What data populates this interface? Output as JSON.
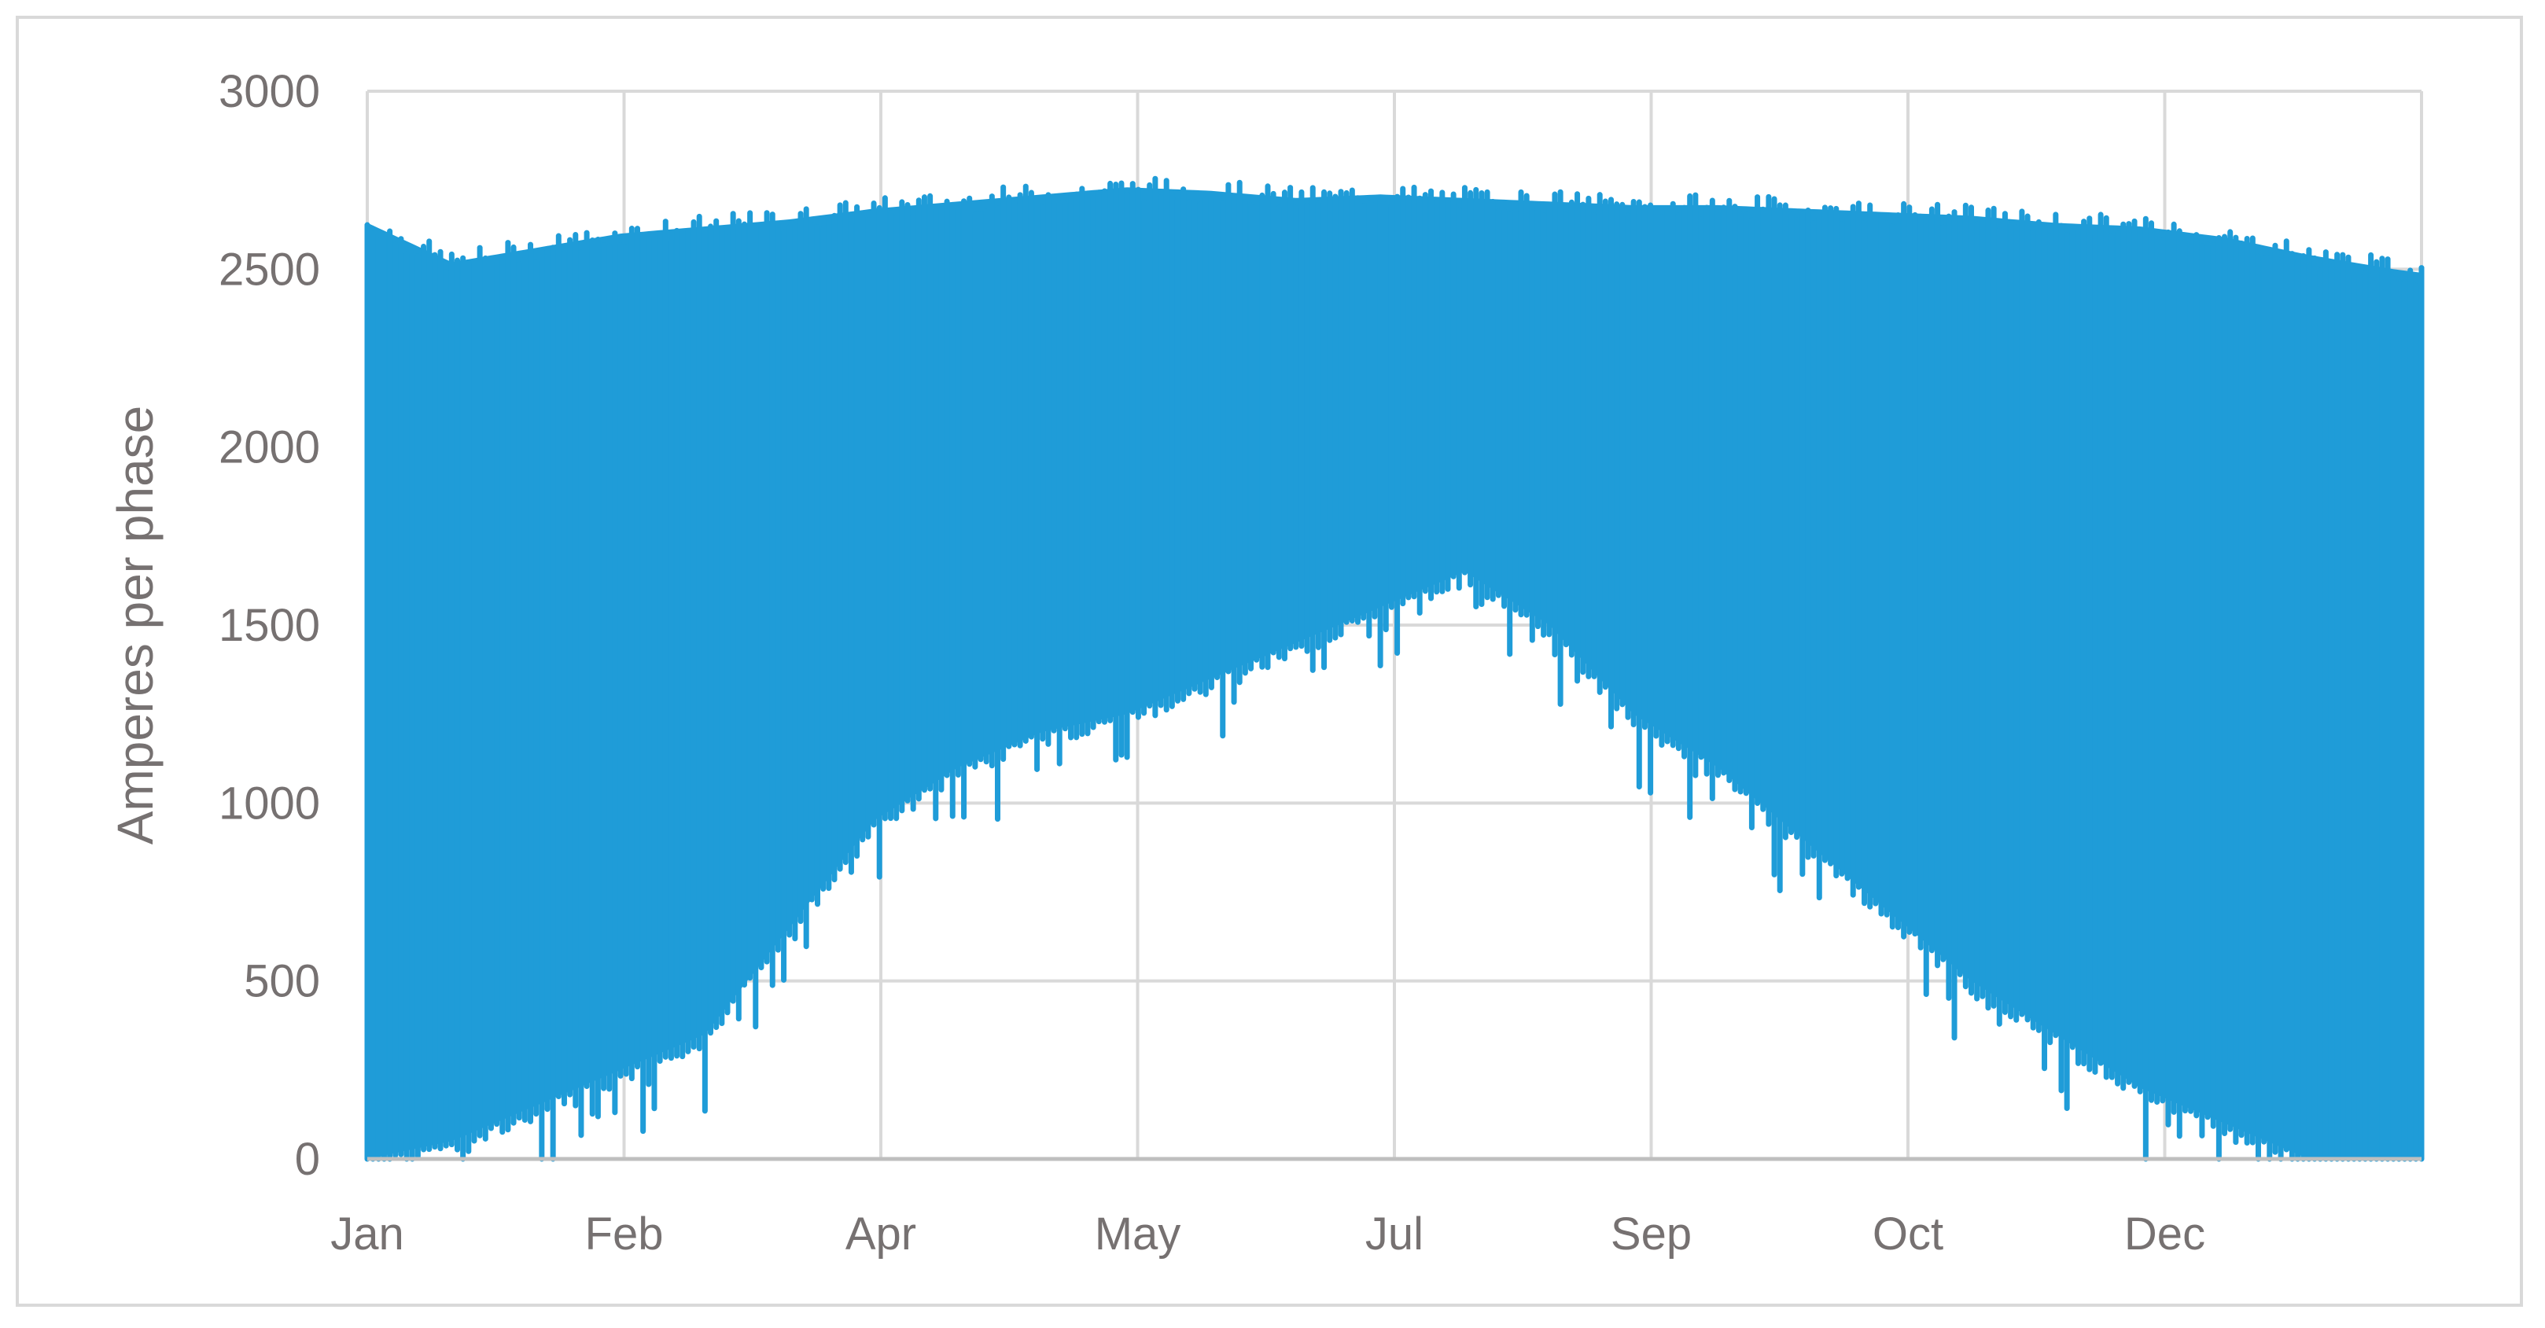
{
  "chart_data": {
    "type": "area",
    "title": "",
    "xlabel": "",
    "ylabel": "Amperes per phase",
    "ylim": [
      0,
      3000
    ],
    "yticks": [
      "0",
      "500",
      "1000",
      "1500",
      "2000",
      "2500",
      "3000"
    ],
    "x_tick_labels": [
      "Jan",
      "Feb",
      "Apr",
      "May",
      "Jul",
      "Sep",
      "Oct",
      "Dec"
    ],
    "xlim_days": [
      0,
      365
    ],
    "grid": true,
    "legend": "none",
    "series": [
      {
        "color": "#1f9cd8",
        "envelope_days": [
          0,
          15,
          30,
          45,
          60,
          75,
          90,
          105,
          120,
          135,
          150,
          165,
          180,
          195,
          210,
          225,
          240,
          255,
          270,
          285,
          300,
          315,
          330,
          345,
          360,
          365
        ],
        "max": [
          2630,
          2520,
          2560,
          2600,
          2620,
          2640,
          2670,
          2690,
          2710,
          2730,
          2720,
          2700,
          2710,
          2700,
          2690,
          2680,
          2680,
          2670,
          2660,
          2650,
          2630,
          2620,
          2590,
          2540,
          2500,
          2490
        ],
        "min": [
          0,
          50,
          150,
          250,
          350,
          650,
          950,
          1100,
          1200,
          1250,
          1350,
          1450,
          1550,
          1650,
          1500,
          1250,
          1100,
          900,
          700,
          500,
          350,
          200,
          100,
          0,
          0,
          0
        ]
      }
    ]
  }
}
